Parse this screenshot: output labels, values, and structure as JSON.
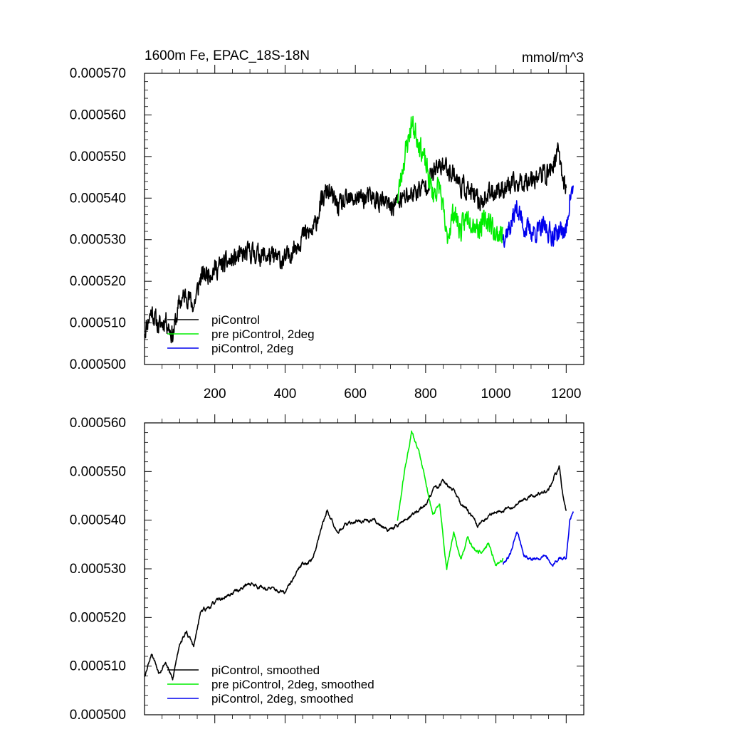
{
  "chart_data": [
    {
      "type": "line",
      "title": "1600m Fe, EPAC_18S-18N",
      "units_label": "mmol/m^3",
      "xlim": [
        0,
        1250
      ],
      "ylim": [
        0.0005,
        0.00057
      ],
      "xticks": [
        200,
        400,
        600,
        800,
        1000,
        1200
      ],
      "xtick_labels": [
        "200",
        "400",
        "600",
        "800",
        "1000",
        "1200"
      ],
      "yticks": [
        0.0005,
        0.00051,
        0.00052,
        0.00053,
        0.00054,
        0.00055,
        0.00056,
        0.00057
      ],
      "ytick_labels": [
        "0.000500",
        "0.000510",
        "0.000520",
        "0.000530",
        "0.000540",
        "0.000550",
        "0.000560",
        "0.000570"
      ],
      "show_xtick_labels": true,
      "legend_position": "lower-left",
      "series": [
        {
          "name": "piControl",
          "color": "#000000",
          "noise": 2.8e-06,
          "seed": 11,
          "x": [
            0,
            20,
            40,
            60,
            80,
            100,
            120,
            140,
            160,
            200,
            250,
            300,
            350,
            400,
            450,
            480,
            500,
            520,
            550,
            600,
            650,
            700,
            720,
            760,
            800,
            820,
            850,
            880,
            900,
            920,
            950,
            1000,
            1050,
            1100,
            1150,
            1180,
            1190,
            1200
          ],
          "y": [
            0.000508,
            0.000513,
            0.000509,
            0.000511,
            0.000507,
            0.000515,
            0.000517,
            0.000514,
            0.000521,
            0.000523,
            0.000525,
            0.000527,
            0.000526,
            0.000525,
            0.000531,
            0.000532,
            0.000538,
            0.000542,
            0.000538,
            0.00054,
            0.00054,
            0.000538,
            0.000539,
            0.000541,
            0.000543,
            0.000546,
            0.000548,
            0.000546,
            0.000543,
            0.000542,
            0.000539,
            0.000542,
            0.000543,
            0.000545,
            0.000546,
            0.000551,
            0.000545,
            0.000542
          ]
        },
        {
          "name": "pre piControl, 2deg",
          "color": "#00ee00",
          "noise": 3.2e-06,
          "seed": 23,
          "x": [
            720,
            740,
            760,
            780,
            800,
            820,
            840,
            860,
            880,
            900,
            920,
            950,
            980,
            1000,
            1020
          ],
          "y": [
            0.00054,
            0.00055,
            0.000558,
            0.000554,
            0.000548,
            0.000541,
            0.000543,
            0.00053,
            0.000537,
            0.000532,
            0.000536,
            0.000533,
            0.000535,
            0.000531,
            0.000532
          ]
        },
        {
          "name": "piControl, 2deg",
          "color": "#0000ee",
          "noise": 2.9e-06,
          "seed": 37,
          "x": [
            1020,
            1040,
            1060,
            1080,
            1100,
            1120,
            1140,
            1160,
            1180,
            1200,
            1210,
            1220
          ],
          "y": [
            0.000531,
            0.000533,
            0.000538,
            0.000533,
            0.000532,
            0.000532,
            0.000533,
            0.000531,
            0.000532,
            0.000532,
            0.00054,
            0.000542
          ]
        }
      ]
    },
    {
      "type": "line",
      "title": "",
      "units_label": "",
      "xlim": [
        0,
        1250
      ],
      "ylim": [
        0.0005,
        0.00056
      ],
      "xticks": [
        200,
        400,
        600,
        800,
        1000,
        1200
      ],
      "xtick_labels": [
        "200",
        "400",
        "600",
        "800",
        "1000",
        "1200"
      ],
      "yticks": [
        0.0005,
        0.00051,
        0.00052,
        0.00053,
        0.00054,
        0.00055,
        0.00056
      ],
      "ytick_labels": [
        "0.000500",
        "0.000510",
        "0.000520",
        "0.000530",
        "0.000540",
        "0.000550",
        "0.000560"
      ],
      "show_xtick_labels": false,
      "legend_position": "lower-left",
      "series": [
        {
          "name": "piControl, smoothed",
          "color": "#000000",
          "noise": 1.2e-06,
          "seed": 53,
          "x": [
            0,
            20,
            40,
            60,
            80,
            100,
            120,
            140,
            160,
            200,
            250,
            300,
            350,
            400,
            450,
            480,
            500,
            520,
            550,
            600,
            650,
            700,
            720,
            760,
            800,
            820,
            850,
            880,
            900,
            920,
            950,
            1000,
            1050,
            1100,
            1150,
            1180,
            1190,
            1200
          ],
          "y": [
            0.000508,
            0.000513,
            0.000509,
            0.000511,
            0.000507,
            0.000515,
            0.000517,
            0.000514,
            0.000521,
            0.000523,
            0.000525,
            0.000527,
            0.000526,
            0.000525,
            0.000531,
            0.000532,
            0.000538,
            0.000542,
            0.000538,
            0.00054,
            0.00054,
            0.000538,
            0.000539,
            0.000541,
            0.000543,
            0.000546,
            0.000548,
            0.000546,
            0.000543,
            0.000542,
            0.000539,
            0.000542,
            0.000543,
            0.000545,
            0.000546,
            0.000551,
            0.000545,
            0.000542
          ]
        },
        {
          "name": "pre piControl, 2deg, smoothed",
          "color": "#00ee00",
          "noise": 1.2e-06,
          "seed": 61,
          "x": [
            720,
            740,
            760,
            780,
            800,
            820,
            840,
            860,
            880,
            900,
            920,
            950,
            980,
            1000,
            1020
          ],
          "y": [
            0.00054,
            0.00055,
            0.000558,
            0.000554,
            0.000548,
            0.000541,
            0.000543,
            0.00053,
            0.000537,
            0.000532,
            0.000536,
            0.000533,
            0.000535,
            0.000531,
            0.000532
          ]
        },
        {
          "name": "piControl, 2deg, smoothed",
          "color": "#0000ee",
          "noise": 1.1e-06,
          "seed": 79,
          "x": [
            1020,
            1040,
            1060,
            1080,
            1100,
            1120,
            1140,
            1160,
            1180,
            1200,
            1210,
            1220
          ],
          "y": [
            0.000531,
            0.000533,
            0.000538,
            0.000533,
            0.000532,
            0.000532,
            0.000533,
            0.000531,
            0.000532,
            0.000532,
            0.00054,
            0.000542
          ]
        }
      ]
    }
  ]
}
